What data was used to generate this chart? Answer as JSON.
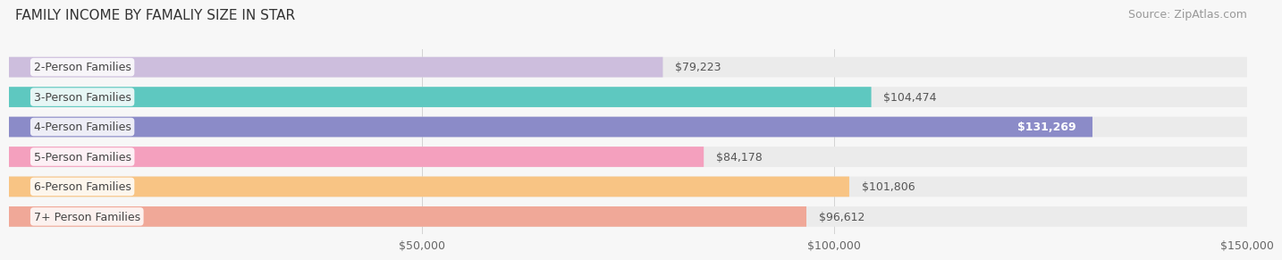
{
  "title": "FAMILY INCOME BY FAMALIY SIZE IN STAR",
  "source": "Source: ZipAtlas.com",
  "categories": [
    "2-Person Families",
    "3-Person Families",
    "4-Person Families",
    "5-Person Families",
    "6-Person Families",
    "7+ Person Families"
  ],
  "values": [
    79223,
    104474,
    131269,
    84178,
    101806,
    96612
  ],
  "labels": [
    "$79,223",
    "$104,474",
    "$131,269",
    "$84,178",
    "$101,806",
    "$96,612"
  ],
  "bar_colors": [
    "#cdbedd",
    "#5ec8c0",
    "#8b8bc8",
    "#f4a0be",
    "#f8c484",
    "#f0a898"
  ],
  "bar_bg_color": "#ebebeb",
  "xlim": [
    0,
    150000
  ],
  "xticks": [
    50000,
    100000,
    150000
  ],
  "xticklabels": [
    "$50,000",
    "$100,000",
    "$150,000"
  ],
  "title_fontsize": 11,
  "source_fontsize": 9,
  "label_fontsize": 9,
  "category_fontsize": 9,
  "background_color": "#f7f7f7"
}
